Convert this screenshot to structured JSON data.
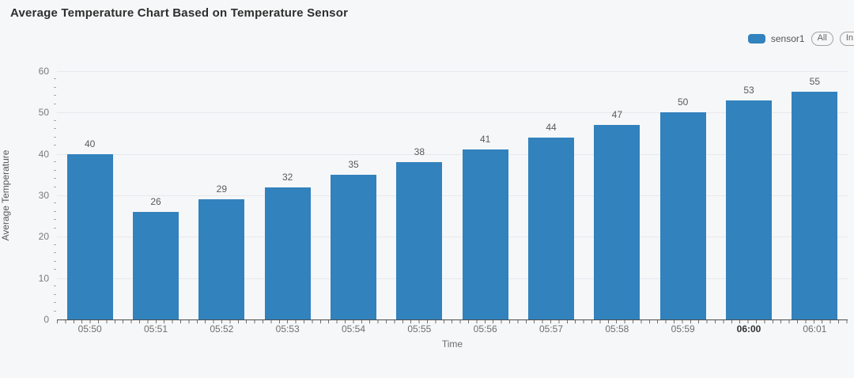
{
  "header": {
    "title": "Average Temperature Chart Based on Temperature Sensor"
  },
  "legend": {
    "series_label": "sensor1",
    "swatch_color": "#3282bd",
    "all_button_label": "All",
    "inv_button_label": "In"
  },
  "chart_data": {
    "type": "bar",
    "title": "Average Temperature Chart Based on Temperature Sensor",
    "categories": [
      "05:50",
      "05:51",
      "05:52",
      "05:53",
      "05:54",
      "05:55",
      "05:56",
      "05:57",
      "05:58",
      "05:59",
      "06:00",
      "06:01"
    ],
    "values": [
      40,
      26,
      29,
      32,
      35,
      38,
      41,
      44,
      47,
      50,
      53,
      55
    ],
    "series": [
      {
        "name": "sensor1",
        "values": [
          40,
          26,
          29,
          32,
          35,
          38,
          41,
          44,
          47,
          50,
          53,
          55
        ]
      }
    ],
    "xlabel": "Time",
    "ylabel": "Average Temperature",
    "ylim": [
      0,
      60
    ],
    "y_major_ticks": [
      0,
      10,
      20,
      30,
      40,
      50,
      60
    ],
    "y_minor_tick_step": 2,
    "emphasized_category": "06:00",
    "bar_color": "#3282bd",
    "grid": true,
    "legend_entries": [
      "sensor1"
    ],
    "legend_position": "top-right"
  }
}
